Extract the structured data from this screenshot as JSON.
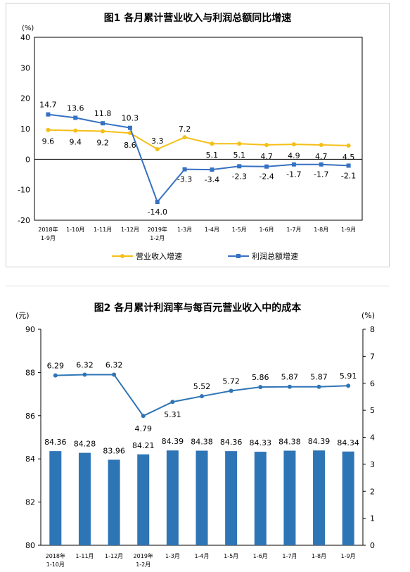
{
  "chart1": {
    "title": "图1  各月累计营业收入与利润总额同比增速",
    "unit": "(%)",
    "chart_data": {
      "type": "line",
      "title": "图1  各月累计营业收入与利润总额同比增速",
      "ylabel": "(%)",
      "ylim": [
        -20,
        40
      ],
      "yticks": [
        "-20",
        "-10",
        "0",
        "10",
        "20",
        "30",
        "40"
      ],
      "categories": [
        [
          "2018年",
          "1-9月"
        ],
        [
          "1-10月"
        ],
        [
          "1-11月"
        ],
        [
          "1-12月"
        ],
        [
          "2019年",
          "1-2月"
        ],
        [
          "1-3月"
        ],
        [
          "1-4月"
        ],
        [
          "1-5月"
        ],
        [
          "1-6月"
        ],
        [
          "1-7月"
        ],
        [
          "1-8月"
        ],
        [
          "1-9月"
        ]
      ],
      "series": [
        {
          "name": "营业收入增速",
          "color": "#f5bf18",
          "values": [
            9.6,
            9.4,
            9.2,
            8.6,
            3.3,
            7.2,
            5.1,
            5.1,
            4.7,
            4.9,
            4.7,
            4.5
          ],
          "labels": [
            "9.6",
            "9.4",
            "9.2",
            "8.6",
            "3.3",
            "7.2",
            "5.1",
            "5.1",
            "4.7",
            "4.9",
            "4.7",
            "4.5"
          ]
        },
        {
          "name": "利润总额增速",
          "color": "#3671c2",
          "values": [
            14.7,
            13.6,
            11.8,
            10.3,
            -14.0,
            -3.3,
            -3.4,
            -2.3,
            -2.4,
            -1.7,
            -1.7,
            -2.1
          ],
          "labels": [
            "14.7",
            "13.6",
            "11.8",
            "10.3",
            "-14.0",
            "-3.3",
            "-3.4",
            "-2.3",
            "-2.4",
            "-1.7",
            "-1.7",
            "-2.1"
          ]
        }
      ],
      "legend": "bottom",
      "grid": false
    }
  },
  "chart2": {
    "title": "图2  各月累计利润率与每百元营业收入中的成本",
    "left_unit": "(元)",
    "right_unit": "(%)",
    "chart_data": {
      "type": "bar",
      "title": "图2  各月累计利润率与每百元营业收入中的成本",
      "ylabel": "(元)",
      "y2label": "(%)",
      "ylim": [
        80,
        90
      ],
      "y2lim": [
        0,
        8
      ],
      "yticks": [
        "80",
        "82",
        "84",
        "86",
        "88",
        "90"
      ],
      "y2ticks": [
        "0",
        "1",
        "2",
        "3",
        "4",
        "5",
        "6",
        "7",
        "8"
      ],
      "categories": [
        [
          "2018年",
          "1-10月"
        ],
        [
          "1-11月"
        ],
        [
          "1-12月"
        ],
        [
          "2019年",
          "1-2月"
        ],
        [
          "1-3月"
        ],
        [
          "1-4月"
        ],
        [
          "1-5月"
        ],
        [
          "1-6月"
        ],
        [
          "1-7月"
        ],
        [
          "1-8月"
        ],
        [
          "1-9月"
        ]
      ],
      "series": [
        {
          "kind": "bar",
          "axis": "left",
          "color": "#2e75b6",
          "values": [
            84.36,
            84.28,
            83.96,
            84.21,
            84.39,
            84.38,
            84.36,
            84.33,
            84.38,
            84.39,
            84.34
          ],
          "labels": [
            "84.36",
            "84.28",
            "83.96",
            "84.21",
            "84.39",
            "84.38",
            "84.36",
            "84.33",
            "84.38",
            "84.39",
            "84.34"
          ]
        },
        {
          "kind": "line",
          "axis": "right",
          "color": "#2e75b6",
          "values": [
            6.29,
            6.32,
            6.32,
            4.79,
            5.31,
            5.52,
            5.72,
            5.86,
            5.87,
            5.87,
            5.91
          ],
          "labels": [
            "6.29",
            "6.32",
            "6.32",
            "4.79",
            "5.31",
            "5.52",
            "5.72",
            "5.86",
            "5.87",
            "5.87",
            "5.91"
          ]
        }
      ],
      "grid": false
    }
  }
}
